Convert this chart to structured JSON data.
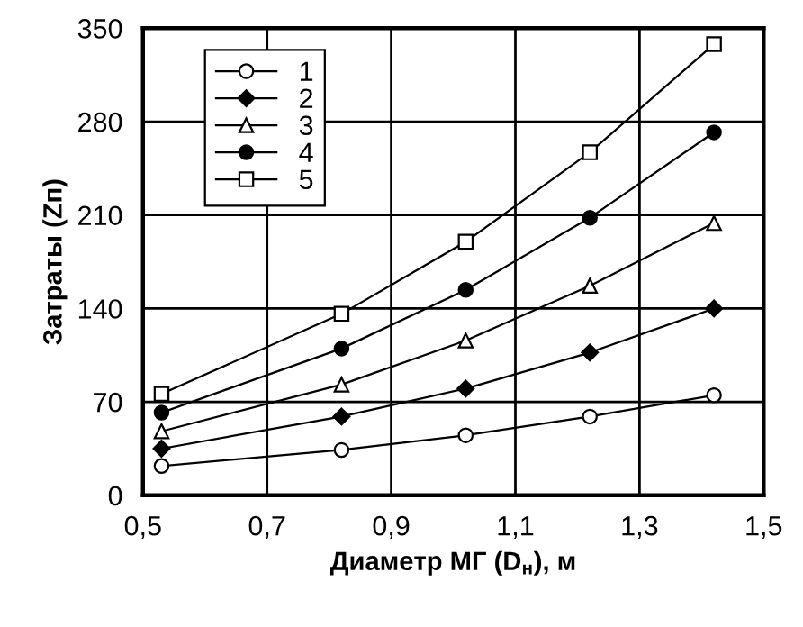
{
  "chart_data": {
    "type": "line",
    "xlabel": "Диаметр МГ (D$_{н}$), м",
    "ylabel": "Затраты (Zп)",
    "xlim": [
      0.5,
      1.5
    ],
    "xticks": [
      {
        "value": 0.5,
        "label": "0,5"
      },
      {
        "value": 0.7,
        "label": "0,7"
      },
      {
        "value": 0.9,
        "label": "0,9"
      },
      {
        "value": 1.1,
        "label": "1,1"
      },
      {
        "value": 1.3,
        "label": "1,3"
      },
      {
        "value": 1.5,
        "label": "1,5"
      }
    ],
    "ylim": [
      0,
      350
    ],
    "yticks": [
      0,
      70,
      140,
      210,
      280,
      350
    ],
    "grid": true,
    "legend": "top left",
    "x": [
      0.53,
      0.82,
      1.02,
      1.22,
      1.42
    ],
    "series": [
      {
        "name": "1",
        "color": "#000000",
        "marker": "circle",
        "values": [
          22,
          34,
          45,
          59,
          75
        ]
      },
      {
        "name": "2",
        "color": "#000000",
        "marker": "diamond",
        "values": [
          35,
          59,
          80,
          107,
          140
        ]
      },
      {
        "name": "3",
        "color": "#000000",
        "marker": "triangle",
        "values": [
          48,
          83,
          116,
          157,
          204
        ]
      },
      {
        "name": "4",
        "color": "#000000",
        "marker": "circle",
        "values": [
          62,
          110,
          154,
          208,
          272
        ]
      },
      {
        "name": "5",
        "color": "#000000",
        "marker": "square",
        "values": [
          76,
          136,
          190,
          257,
          338
        ]
      }
    ]
  }
}
